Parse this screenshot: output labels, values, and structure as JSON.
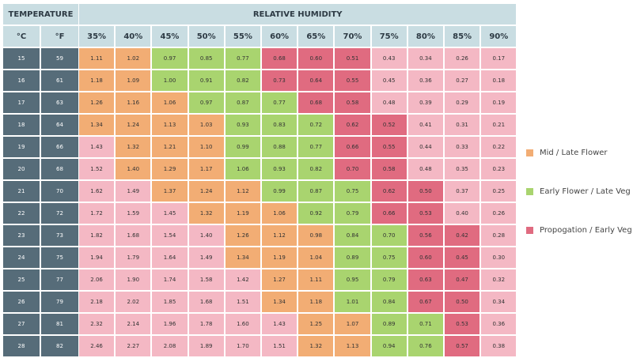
{
  "header": {
    "temperature": "TEMPERATURE",
    "humidity": "RELATIVE HUMIDITY",
    "celsius": "°C",
    "fahrenheit": "°F"
  },
  "humidity_columns": [
    "35%",
    "40%",
    "45%",
    "50%",
    "55%",
    "60%",
    "65%",
    "70%",
    "75%",
    "80%",
    "85%",
    "90%"
  ],
  "rows": [
    {
      "c": "15",
      "f": "59",
      "values": [
        "1.11",
        "1.02",
        "0.97",
        "0.85",
        "0.77",
        "0.68",
        "0.60",
        "0.51",
        "0.43",
        "0.34",
        "0.26",
        "0.17"
      ],
      "colors": [
        "#f2ad74",
        "#f2ad74",
        "#a9d46f",
        "#a9d46f",
        "#a9d46f",
        "#e06b80",
        "#e06b80",
        "#e06b80",
        "#f4b8c4",
        "#f4b8c4",
        "#f4b8c4",
        "#f4b8c4"
      ]
    },
    {
      "c": "16",
      "f": "61",
      "values": [
        "1.18",
        "1.09",
        "1.00",
        "0.91",
        "0.82",
        "0.73",
        "0.64",
        "0.55",
        "0.45",
        "0.36",
        "0.27",
        "0.18"
      ],
      "colors": [
        "#f2ad74",
        "#f2ad74",
        "#a9d46f",
        "#a9d46f",
        "#a9d46f",
        "#e06b80",
        "#e06b80",
        "#e06b80",
        "#f4b8c4",
        "#f4b8c4",
        "#f4b8c4",
        "#f4b8c4"
      ]
    },
    {
      "c": "17",
      "f": "63",
      "values": [
        "1.26",
        "1.16",
        "1.06",
        "0.97",
        "0.87",
        "0.77",
        "0.68",
        "0.58",
        "0.48",
        "0.39",
        "0.29",
        "0.19"
      ],
      "colors": [
        "#f2ad74",
        "#f2ad74",
        "#f2ad74",
        "#a9d46f",
        "#a9d46f",
        "#a9d46f",
        "#e06b80",
        "#e06b80",
        "#f4b8c4",
        "#f4b8c4",
        "#f4b8c4",
        "#f4b8c4"
      ]
    },
    {
      "c": "18",
      "f": "64",
      "values": [
        "1.34",
        "1.24",
        "1.13",
        "1.03",
        "0.93",
        "0.83",
        "0.72",
        "0.62",
        "0.52",
        "0.41",
        "0.31",
        "0.21"
      ],
      "colors": [
        "#f2ad74",
        "#f2ad74",
        "#f2ad74",
        "#f2ad74",
        "#a9d46f",
        "#a9d46f",
        "#a9d46f",
        "#e06b80",
        "#e06b80",
        "#f4b8c4",
        "#f4b8c4",
        "#f4b8c4"
      ]
    },
    {
      "c": "19",
      "f": "66",
      "values": [
        "1.43",
        "1.32",
        "1.21",
        "1.10",
        "0.99",
        "0.88",
        "0.77",
        "0.66",
        "0.55",
        "0.44",
        "0.33",
        "0.22"
      ],
      "colors": [
        "#f4b8c4",
        "#f2ad74",
        "#f2ad74",
        "#f2ad74",
        "#a9d46f",
        "#a9d46f",
        "#a9d46f",
        "#e06b80",
        "#e06b80",
        "#f4b8c4",
        "#f4b8c4",
        "#f4b8c4"
      ]
    },
    {
      "c": "20",
      "f": "68",
      "values": [
        "1.52",
        "1.40",
        "1.29",
        "1.17",
        "1.06",
        "0.93",
        "0.82",
        "0.70",
        "0.58",
        "0.48",
        "0.35",
        "0.23"
      ],
      "colors": [
        "#f4b8c4",
        "#f2ad74",
        "#f2ad74",
        "#f2ad74",
        "#a9d46f",
        "#a9d46f",
        "#a9d46f",
        "#e06b80",
        "#e06b80",
        "#f4b8c4",
        "#f4b8c4",
        "#f4b8c4"
      ]
    },
    {
      "c": "21",
      "f": "70",
      "values": [
        "1.62",
        "1.49",
        "1.37",
        "1.24",
        "1.12",
        "0.99",
        "0.87",
        "0.75",
        "0.62",
        "0.50",
        "0.37",
        "0.25"
      ],
      "colors": [
        "#f4b8c4",
        "#f4b8c4",
        "#f2ad74",
        "#f2ad74",
        "#f2ad74",
        "#a9d46f",
        "#a9d46f",
        "#a9d46f",
        "#e06b80",
        "#e06b80",
        "#f4b8c4",
        "#f4b8c4"
      ]
    },
    {
      "c": "22",
      "f": "72",
      "values": [
        "1.72",
        "1.59",
        "1.45",
        "1.32",
        "1.19",
        "1.06",
        "0.92",
        "0.79",
        "0.66",
        "0.53",
        "0.40",
        "0.26"
      ],
      "colors": [
        "#f4b8c4",
        "#f4b8c4",
        "#f4b8c4",
        "#f2ad74",
        "#f2ad74",
        "#f2ad74",
        "#a9d46f",
        "#a9d46f",
        "#e06b80",
        "#e06b80",
        "#f4b8c4",
        "#f4b8c4"
      ]
    },
    {
      "c": "23",
      "f": "73",
      "values": [
        "1.82",
        "1.68",
        "1.54",
        "1.40",
        "1.26",
        "1.12",
        "0.98",
        "0.84",
        "0.70",
        "0.56",
        "0.42",
        "0.28"
      ],
      "colors": [
        "#f4b8c4",
        "#f4b8c4",
        "#f4b8c4",
        "#f4b8c4",
        "#f2ad74",
        "#f2ad74",
        "#f2ad74",
        "#a9d46f",
        "#a9d46f",
        "#e06b80",
        "#e06b80",
        "#f4b8c4"
      ]
    },
    {
      "c": "24",
      "f": "75",
      "values": [
        "1.94",
        "1.79",
        "1.64",
        "1.49",
        "1.34",
        "1.19",
        "1.04",
        "0.89",
        "0.75",
        "0.60",
        "0.45",
        "0.30"
      ],
      "colors": [
        "#f4b8c4",
        "#f4b8c4",
        "#f4b8c4",
        "#f4b8c4",
        "#f2ad74",
        "#f2ad74",
        "#f2ad74",
        "#a9d46f",
        "#a9d46f",
        "#e06b80",
        "#e06b80",
        "#f4b8c4"
      ]
    },
    {
      "c": "25",
      "f": "77",
      "values": [
        "2.06",
        "1.90",
        "1.74",
        "1.58",
        "1.42",
        "1.27",
        "1.11",
        "0.95",
        "0.79",
        "0.63",
        "0.47",
        "0.32"
      ],
      "colors": [
        "#f4b8c4",
        "#f4b8c4",
        "#f4b8c4",
        "#f4b8c4",
        "#f4b8c4",
        "#f2ad74",
        "#f2ad74",
        "#a9d46f",
        "#a9d46f",
        "#e06b80",
        "#e06b80",
        "#f4b8c4"
      ]
    },
    {
      "c": "26",
      "f": "79",
      "values": [
        "2.18",
        "2.02",
        "1.85",
        "1.68",
        "1.51",
        "1.34",
        "1.18",
        "1.01",
        "0.84",
        "0.67",
        "0.50",
        "0.34"
      ],
      "colors": [
        "#f4b8c4",
        "#f4b8c4",
        "#f4b8c4",
        "#f4b8c4",
        "#f4b8c4",
        "#f2ad74",
        "#f2ad74",
        "#a9d46f",
        "#a9d46f",
        "#e06b80",
        "#e06b80",
        "#f4b8c4"
      ]
    },
    {
      "c": "27",
      "f": "81",
      "values": [
        "2.32",
        "2.14",
        "1.96",
        "1.78",
        "1.60",
        "1.43",
        "1.25",
        "1.07",
        "0.89",
        "0.71",
        "0.53",
        "0.36"
      ],
      "colors": [
        "#f4b8c4",
        "#f4b8c4",
        "#f4b8c4",
        "#f4b8c4",
        "#f4b8c4",
        "#f4b8c4",
        "#f2ad74",
        "#f2ad74",
        "#a9d46f",
        "#a9d46f",
        "#e06b80",
        "#f4b8c4"
      ]
    },
    {
      "c": "28",
      "f": "82",
      "values": [
        "2.46",
        "2.27",
        "2.08",
        "1.89",
        "1.70",
        "1.51",
        "1.32",
        "1.13",
        "0.94",
        "0.76",
        "0.57",
        "0.38"
      ],
      "colors": [
        "#f4b8c4",
        "#f4b8c4",
        "#f4b8c4",
        "#f4b8c4",
        "#f4b8c4",
        "#f4b8c4",
        "#f2ad74",
        "#f2ad74",
        "#a9d46f",
        "#a9d46f",
        "#e06b80",
        "#f4b8c4"
      ]
    }
  ],
  "legend": [
    {
      "label": "Mid / Late Flower",
      "color": "#f2ad74"
    },
    {
      "label": "Early Flower / Late Veg",
      "color": "#a9d46f"
    },
    {
      "label": "Propogation / Early Veg",
      "color": "#e06b80"
    }
  ]
}
